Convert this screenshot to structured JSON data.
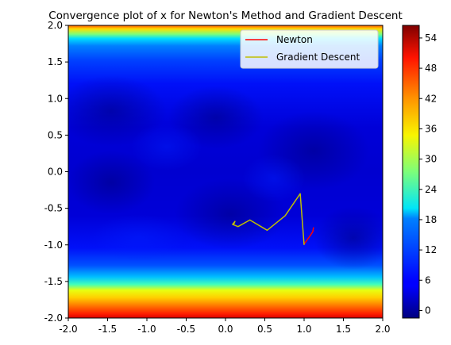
{
  "chart_data": {
    "type": "heatmap",
    "title": "Convergence plot of x for Newton's Method and Gradient Descent",
    "xlim": [
      -2.0,
      2.0
    ],
    "ylim": [
      -2.0,
      2.0
    ],
    "x_ticks": [
      "-2.0",
      "-1.5",
      "-1.0",
      "-0.5",
      "0.0",
      "0.5",
      "1.0",
      "1.5",
      "2.0"
    ],
    "y_ticks": [
      "-2.0",
      "-1.5",
      "-1.0",
      "-0.5",
      "0.0",
      "0.5",
      "1.0",
      "1.5",
      "2.0"
    ],
    "colorbar": {
      "colormap": "jet",
      "range": [
        -1.5,
        56.5
      ],
      "ticks": [
        "0",
        "6",
        "12",
        "18",
        "24",
        "30",
        "36",
        "42",
        "48",
        "54"
      ]
    },
    "grid": false,
    "legend_position": "top-right",
    "series": [
      {
        "name": "Newton",
        "type": "line",
        "color": "#ff0000",
        "x": [
          1.12,
          1.11,
          1.08,
          1.0
        ],
        "y": [
          -0.76,
          -0.82,
          -0.87,
          -0.99
        ]
      },
      {
        "name": "Gradient Descent",
        "type": "line",
        "color": "#bfbf00",
        "x": [
          0.1,
          0.12,
          0.09,
          0.16,
          0.31,
          0.53,
          0.76,
          0.95,
          1.0
        ],
        "y": [
          -0.73,
          -0.68,
          -0.72,
          -0.75,
          -0.66,
          -0.8,
          -0.6,
          -0.3,
          -1.0
        ]
      }
    ]
  }
}
